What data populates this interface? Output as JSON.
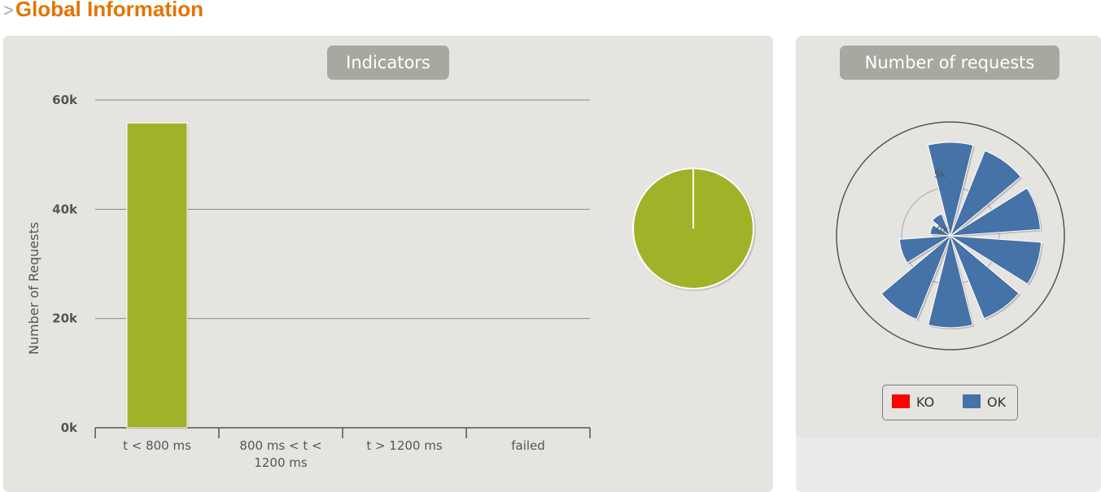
{
  "page": {
    "section_arrow": ">",
    "section_title": "Global Information"
  },
  "indicators_panel": {
    "title": "Indicators"
  },
  "requests_panel": {
    "title": "Number of requests"
  },
  "colors": {
    "section_title": "#E37400",
    "bar": "#A0B228",
    "pie": "#A0B228",
    "rose": "#4572A7",
    "ko": "#FF0000",
    "ok": "#4572A7"
  },
  "chart_data": [
    {
      "type": "bar",
      "title": "Indicators",
      "ylabel": "Number of Requests",
      "categories": [
        "t < 800 ms",
        "800 ms < t < 1200 ms",
        "t > 1200 ms",
        "failed"
      ],
      "category_lines": [
        [
          "t < 800 ms"
        ],
        [
          "800 ms < t <",
          "1200 ms"
        ],
        [
          "t > 1200 ms"
        ],
        [
          "failed"
        ]
      ],
      "values": [
        55800,
        0,
        0,
        0
      ],
      "ylim": [
        0,
        60000
      ],
      "yticks": [
        0,
        20000,
        40000,
        60000
      ],
      "ytick_labels": [
        "0k",
        "20k",
        "40k",
        "60k"
      ],
      "grid": true
    },
    {
      "type": "pie",
      "slices": [
        {
          "category": "t < 800 ms",
          "value": 55800
        },
        {
          "category": "failed",
          "value": 0
        }
      ]
    },
    {
      "type": "polar-bar",
      "title": "Number of requests",
      "ytick_labels": [
        "0k",
        "5k"
      ],
      "series": [
        {
          "name": "KO",
          "color": "#FF0000",
          "values": [
            0,
            0,
            0,
            0,
            0,
            0,
            0,
            0,
            0,
            0
          ]
        },
        {
          "name": "OK",
          "color": "#4572A7",
          "values": [
            5500,
            5400,
            5300,
            5350,
            5250,
            5400,
            5300,
            3000,
            1200,
            1400
          ]
        }
      ],
      "rmax": 5500
    }
  ],
  "legend": {
    "items": [
      {
        "label": "KO",
        "color": "#FF0000"
      },
      {
        "label": "OK",
        "color": "#4572A7"
      }
    ]
  }
}
